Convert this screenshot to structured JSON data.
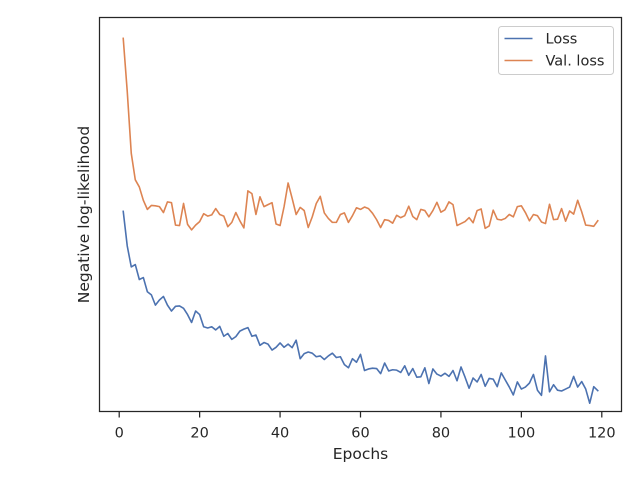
{
  "chart_data": {
    "type": "line",
    "title": "",
    "xlabel": "Epochs",
    "ylabel": "Negative log-likelihood",
    "xlim": [
      -4.9,
      124.9
    ],
    "ylim": [
      0,
      1
    ],
    "xticks": [
      0,
      20,
      40,
      60,
      80,
      100,
      120
    ],
    "xtick_labels": [
      "0",
      "20",
      "40",
      "60",
      "80",
      "100",
      "120"
    ],
    "yticks": [],
    "y_tick_labels_shown": false,
    "y_units": "relative (no y-axis tick values printed)",
    "grid": false,
    "legend": {
      "location": "upper right",
      "entries": [
        "Loss",
        "Val. loss"
      ]
    },
    "series": [
      {
        "name": "Loss",
        "color": "#4c72b0",
        "x": [
          1,
          2,
          3,
          4,
          5,
          6,
          7,
          8,
          9,
          10,
          11,
          12,
          13,
          14,
          15,
          16,
          17,
          18,
          19,
          20,
          21,
          22,
          23,
          24,
          25,
          26,
          27,
          28,
          29,
          30,
          31,
          32,
          33,
          34,
          35,
          36,
          37,
          38,
          39,
          40,
          41,
          42,
          43,
          44,
          45,
          46,
          47,
          48,
          49,
          50,
          51,
          52,
          53,
          54,
          55,
          56,
          57,
          58,
          59,
          60,
          61,
          62,
          63,
          64,
          65,
          66,
          67,
          68,
          69,
          70,
          71,
          72,
          73,
          74,
          75,
          76,
          77,
          78,
          79,
          80,
          81,
          82,
          83,
          84,
          85,
          86,
          87,
          88,
          89,
          90,
          91,
          92,
          93,
          94,
          95,
          96,
          97,
          98,
          99,
          100,
          101,
          102,
          103,
          104,
          105,
          106,
          107,
          108,
          109,
          110,
          111,
          112,
          113,
          114,
          115,
          116,
          117,
          118,
          119
        ],
        "values": [
          0.508,
          0.42,
          0.367,
          0.373,
          0.335,
          0.34,
          0.304,
          0.296,
          0.27,
          0.283,
          0.292,
          0.27,
          0.255,
          0.267,
          0.268,
          0.262,
          0.246,
          0.226,
          0.255,
          0.246,
          0.215,
          0.212,
          0.215,
          0.207,
          0.216,
          0.191,
          0.198,
          0.183,
          0.19,
          0.204,
          0.209,
          0.213,
          0.191,
          0.194,
          0.168,
          0.175,
          0.171,
          0.156,
          0.163,
          0.174,
          0.163,
          0.171,
          0.162,
          0.181,
          0.134,
          0.147,
          0.151,
          0.148,
          0.139,
          0.141,
          0.132,
          0.141,
          0.148,
          0.137,
          0.139,
          0.119,
          0.111,
          0.134,
          0.125,
          0.145,
          0.104,
          0.108,
          0.11,
          0.109,
          0.096,
          0.123,
          0.103,
          0.106,
          0.105,
          0.099,
          0.116,
          0.092,
          0.109,
          0.087,
          0.088,
          0.111,
          0.071,
          0.108,
          0.095,
          0.09,
          0.097,
          0.089,
          0.104,
          0.078,
          0.113,
          0.087,
          0.059,
          0.085,
          0.075,
          0.094,
          0.064,
          0.084,
          0.082,
          0.063,
          0.098,
          0.08,
          0.062,
          0.042,
          0.075,
          0.057,
          0.062,
          0.072,
          0.094,
          0.054,
          0.041,
          0.141,
          0.05,
          0.068,
          0.054,
          0.052,
          0.057,
          0.062,
          0.089,
          0.062,
          0.076,
          0.057,
          0.021,
          0.063,
          0.053
        ]
      },
      {
        "name": "Val. loss",
        "color": "#dd8452",
        "x": [
          1,
          2,
          3,
          4,
          5,
          6,
          7,
          8,
          9,
          10,
          11,
          12,
          13,
          14,
          15,
          16,
          17,
          18,
          19,
          20,
          21,
          22,
          23,
          24,
          25,
          26,
          27,
          28,
          29,
          30,
          31,
          32,
          33,
          34,
          35,
          36,
          37,
          38,
          39,
          40,
          41,
          42,
          43,
          44,
          45,
          46,
          47,
          48,
          49,
          50,
          51,
          52,
          53,
          54,
          55,
          56,
          57,
          58,
          59,
          60,
          61,
          62,
          63,
          64,
          65,
          66,
          67,
          68,
          69,
          70,
          71,
          72,
          73,
          74,
          75,
          76,
          77,
          78,
          79,
          80,
          81,
          82,
          83,
          84,
          85,
          86,
          87,
          88,
          89,
          90,
          91,
          92,
          93,
          94,
          95,
          96,
          97,
          98,
          99,
          100,
          101,
          102,
          103,
          104,
          105,
          106,
          107,
          108,
          109,
          110,
          111,
          112,
          113,
          114,
          115,
          116,
          117,
          118,
          119
        ],
        "values": [
          0.947,
          0.812,
          0.655,
          0.588,
          0.57,
          0.536,
          0.513,
          0.523,
          0.522,
          0.52,
          0.505,
          0.532,
          0.53,
          0.473,
          0.472,
          0.528,
          0.475,
          0.461,
          0.473,
          0.482,
          0.502,
          0.496,
          0.499,
          0.515,
          0.5,
          0.496,
          0.469,
          0.48,
          0.505,
          0.484,
          0.466,
          0.56,
          0.553,
          0.5,
          0.545,
          0.52,
          0.525,
          0.53,
          0.476,
          0.472,
          0.52,
          0.58,
          0.541,
          0.5,
          0.518,
          0.51,
          0.467,
          0.494,
          0.528,
          0.546,
          0.504,
          0.49,
          0.48,
          0.48,
          0.5,
          0.504,
          0.48,
          0.497,
          0.517,
          0.513,
          0.519,
          0.515,
          0.503,
          0.487,
          0.467,
          0.487,
          0.485,
          0.478,
          0.498,
          0.492,
          0.497,
          0.521,
          0.495,
          0.487,
          0.513,
          0.51,
          0.494,
          0.51,
          0.531,
          0.506,
          0.512,
          0.532,
          0.525,
          0.472,
          0.477,
          0.482,
          0.492,
          0.479,
          0.51,
          0.514,
          0.465,
          0.471,
          0.511,
          0.488,
          0.486,
          0.49,
          0.5,
          0.494,
          0.52,
          0.522,
          0.505,
          0.484,
          0.5,
          0.497,
          0.481,
          0.477,
          0.526,
          0.487,
          0.488,
          0.515,
          0.483,
          0.509,
          0.501,
          0.536,
          0.507,
          0.473,
          0.472,
          0.47,
          0.484
        ]
      }
    ]
  }
}
